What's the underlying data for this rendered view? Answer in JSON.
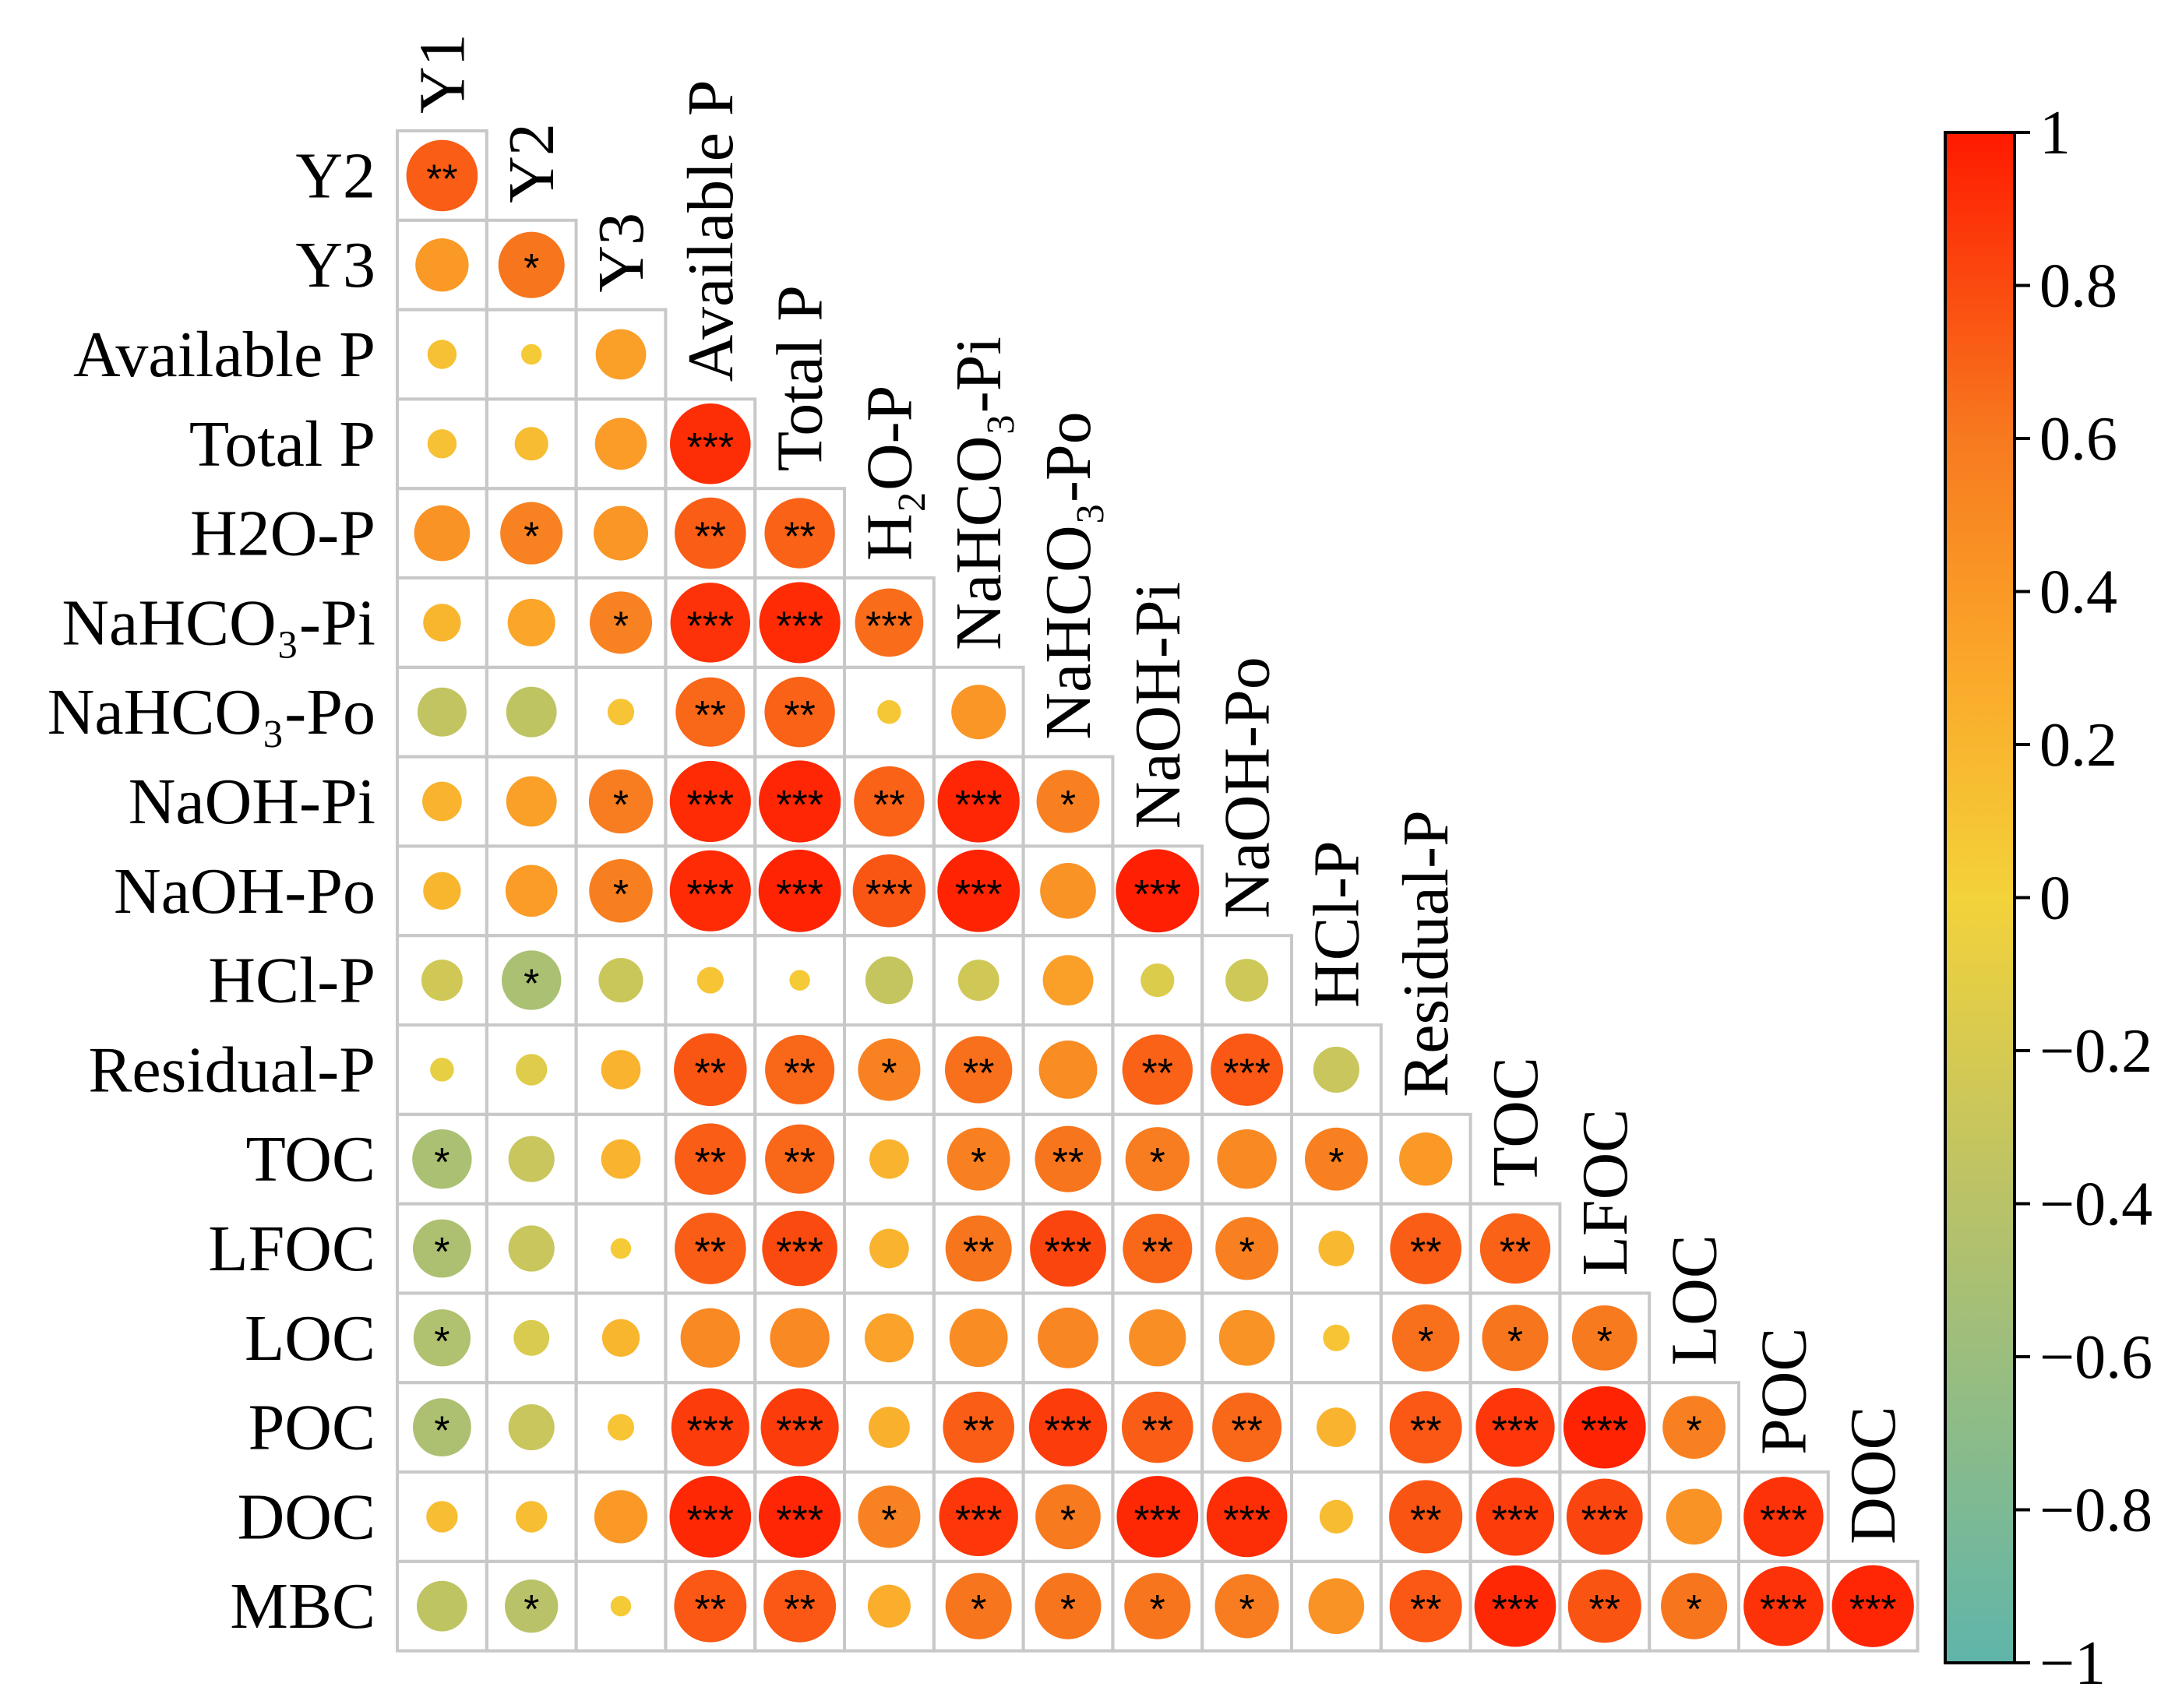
{
  "chart_data": {
    "type": "heatmap",
    "title": "",
    "variables": [
      "Y1",
      "Y2",
      "Y3",
      "Available P",
      "Total P",
      "H₂O-P",
      "NaHCO₃-Pi",
      "NaHCO₃-Po",
      "NaOH-Pi",
      "NaOH-Po",
      "HCl-P",
      "Residual-P",
      "TOC",
      "LFOC",
      "LOC",
      "POC",
      "DOC",
      "MBC"
    ],
    "row_labels": [
      "Y2",
      "Y3",
      "Available P",
      "Total P",
      "H2O-P",
      "NaHCO₃-Pi",
      "NaHCO₃-Po",
      "NaOH-Pi",
      "NaOH-Po",
      "HCl-P",
      "Residual-P",
      "TOC",
      "LFOC",
      "LOC",
      "POC",
      "DOC",
      "MBC"
    ],
    "col_labels": [
      "Y1",
      "Y2",
      "Y3",
      "Available P",
      "Total P",
      "H₂O-P",
      "NaHCO₃-Pi",
      "NaHCO₃-Po",
      "NaOH-Pi",
      "NaOH-Po",
      "HCl-P",
      "Residual-P",
      "TOC",
      "LFOC",
      "LOC",
      "POC",
      "DOC"
    ],
    "correlations": [
      [
        0.72
      ],
      [
        0.4,
        0.62
      ],
      [
        0.12,
        0.06,
        0.36
      ],
      [
        0.12,
        0.16,
        0.38,
        0.92
      ],
      [
        0.44,
        0.55,
        0.42,
        0.72,
        0.7
      ],
      [
        0.2,
        0.32,
        0.55,
        0.9,
        0.93,
        0.66
      ],
      [
        -0.34,
        -0.36,
        0.1,
        0.68,
        0.7,
        0.08,
        0.42
      ],
      [
        0.22,
        0.36,
        0.58,
        0.93,
        0.95,
        0.7,
        0.95,
        0.56
      ],
      [
        0.2,
        0.38,
        0.57,
        0.93,
        0.96,
        0.75,
        0.96,
        0.44,
        0.98
      ],
      [
        -0.24,
        -0.5,
        -0.28,
        0.1,
        0.06,
        -0.32,
        -0.24,
        0.36,
        -0.16,
        -0.26
      ],
      [
        -0.08,
        -0.14,
        0.22,
        0.75,
        0.68,
        0.55,
        0.64,
        0.48,
        0.7,
        0.74,
        -0.3
      ],
      [
        -0.5,
        -0.3,
        0.22,
        0.72,
        0.68,
        0.22,
        0.56,
        0.62,
        0.58,
        0.5,
        0.56,
        0.4
      ],
      [
        -0.48,
        -0.3,
        0.06,
        0.72,
        0.8,
        0.22,
        0.62,
        0.82,
        0.68,
        0.56,
        0.18,
        0.72,
        0.7
      ],
      [
        -0.46,
        -0.18,
        0.2,
        0.5,
        0.5,
        0.34,
        0.48,
        0.52,
        0.46,
        0.44,
        0.1,
        0.64,
        0.62,
        0.6
      ],
      [
        -0.48,
        -0.3,
        0.1,
        0.86,
        0.86,
        0.24,
        0.72,
        0.86,
        0.72,
        0.68,
        0.22,
        0.74,
        0.88,
        0.96,
        0.56
      ],
      [
        0.14,
        0.14,
        0.4,
        0.94,
        0.95,
        0.55,
        0.88,
        0.6,
        0.94,
        0.92,
        0.16,
        0.76,
        0.86,
        0.82,
        0.44,
        0.9
      ],
      [
        -0.36,
        -0.4,
        0.06,
        0.74,
        0.74,
        0.26,
        0.62,
        0.62,
        0.62,
        0.58,
        0.44,
        0.74,
        0.94,
        0.76,
        0.62,
        0.9,
        0.95
      ]
    ],
    "significance": [
      [
        "**"
      ],
      [
        "",
        "*"
      ],
      [
        "",
        "",
        ""
      ],
      [
        "",
        "",
        "",
        "***"
      ],
      [
        "",
        "*",
        "",
        "**",
        "**"
      ],
      [
        "",
        "",
        "*",
        "***",
        "***",
        "***"
      ],
      [
        "",
        "",
        "",
        "**",
        "**",
        "",
        ""
      ],
      [
        "",
        "",
        "*",
        "***",
        "***",
        "**",
        "***",
        "*"
      ],
      [
        "",
        "",
        "*",
        "***",
        "***",
        "***",
        "***",
        "",
        "***"
      ],
      [
        "",
        "*",
        "",
        "",
        "",
        "",
        "",
        "",
        "",
        ""
      ],
      [
        "",
        "",
        "",
        "**",
        "**",
        "*",
        "**",
        "",
        "**",
        "***",
        ""
      ],
      [
        "*",
        "",
        "",
        "**",
        "**",
        "",
        "*",
        "**",
        "*",
        "",
        "*",
        ""
      ],
      [
        "*",
        "",
        "",
        "**",
        "***",
        "",
        "**",
        "***",
        "**",
        "*",
        "",
        "**",
        "**"
      ],
      [
        "*",
        "",
        "",
        "",
        "",
        "",
        "",
        "",
        "",
        "",
        "",
        "*",
        "*",
        "*"
      ],
      [
        "*",
        "",
        "",
        "***",
        "***",
        "",
        "**",
        "***",
        "**",
        "**",
        "",
        "**",
        "***",
        "***",
        "*"
      ],
      [
        "",
        "",
        "",
        "***",
        "***",
        "*",
        "***",
        "*",
        "***",
        "***",
        "",
        "**",
        "***",
        "***",
        "",
        "***"
      ],
      [
        "",
        "*",
        "",
        "**",
        "**",
        "",
        "*",
        "*",
        "*",
        "*",
        "",
        "**",
        "***",
        "**",
        "*",
        "***",
        "***"
      ]
    ],
    "colorbar": {
      "range": [
        -1,
        1
      ],
      "ticks": [
        "1",
        "0.8",
        "0.6",
        "0.4",
        "0.2",
        "0",
        "−0.2",
        "−0.4",
        "−0.6",
        "−0.8",
        "−1"
      ],
      "tick_values": [
        1,
        0.8,
        0.6,
        0.4,
        0.2,
        0,
        -0.2,
        -0.4,
        -0.6,
        -0.8,
        -1
      ],
      "stops": [
        {
          "v": -1,
          "color": "#5fb5aa"
        },
        {
          "v": -0.4,
          "color": "#b9c268"
        },
        {
          "v": 0,
          "color": "#f3d23a"
        },
        {
          "v": 0.3,
          "color": "#fba82a"
        },
        {
          "v": 0.6,
          "color": "#f77a1f"
        },
        {
          "v": 1,
          "color": "#ff1a00"
        }
      ]
    },
    "grid_color": "#c8c8c8"
  }
}
